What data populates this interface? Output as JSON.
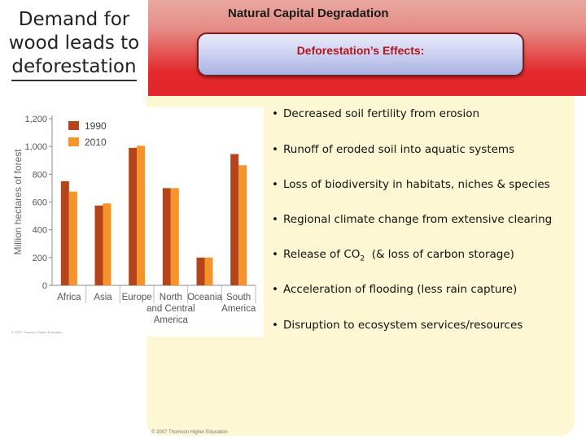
{
  "slide": {
    "title_line1": "Demand for",
    "title_line2": "wood leads to",
    "title_line3": "deforestation",
    "banner_title": "Natural Capital Degradation",
    "pill_label": "Deforestation’s Effects:",
    "copyright": "© 2007 Thomson Higher Education",
    "chart_credit": "© 2007 Thomson Higher Education",
    "colors": {
      "banner": "#e3292c",
      "pill": "#cfd3f2",
      "panel": "#fdf7d3",
      "bar_1990": "#b5441b",
      "bar_2010": "#f7932b"
    }
  },
  "effects": [
    {
      "bullet": "•",
      "text": "Decreased soil fertility from erosion"
    },
    {
      "bullet": "•",
      "text": "Runoff of eroded soil into aquatic systems"
    },
    {
      "bullet": "•",
      "text": "Loss of biodiversity in habitats, niches & species"
    },
    {
      "bullet": "•",
      "text": "Regional climate change from extensive clearing"
    },
    {
      "bullet": "•",
      "text_before": "Release of CO",
      "sub": "2",
      "text_after": "  (& loss of carbon storage)"
    },
    {
      "bullet": "•",
      "text": "Acceleration of flooding (less rain capture)"
    },
    {
      "bullet": "•",
      "text": "Disruption to ecosystem services/resources"
    }
  ],
  "chart_data": {
    "type": "bar",
    "title": "",
    "ylabel": "Million hectares of forest",
    "xlabel": "",
    "ylim": [
      0,
      1200
    ],
    "yticks": [
      "0",
      "200",
      "400",
      "600",
      "800",
      "1,000",
      "1,200"
    ],
    "categories": [
      [
        "Africa"
      ],
      [
        "Asia"
      ],
      [
        "Europe"
      ],
      [
        "North",
        "and Central",
        "America"
      ],
      [
        "Oceania"
      ],
      [
        "South",
        "America"
      ]
    ],
    "series": [
      {
        "name": "1990",
        "values": [
          750,
          575,
          990,
          700,
          200,
          945
        ]
      },
      {
        "name": "2010",
        "values": [
          675,
          590,
          1005,
          700,
          200,
          865
        ]
      }
    ],
    "legend": "top-left"
  }
}
